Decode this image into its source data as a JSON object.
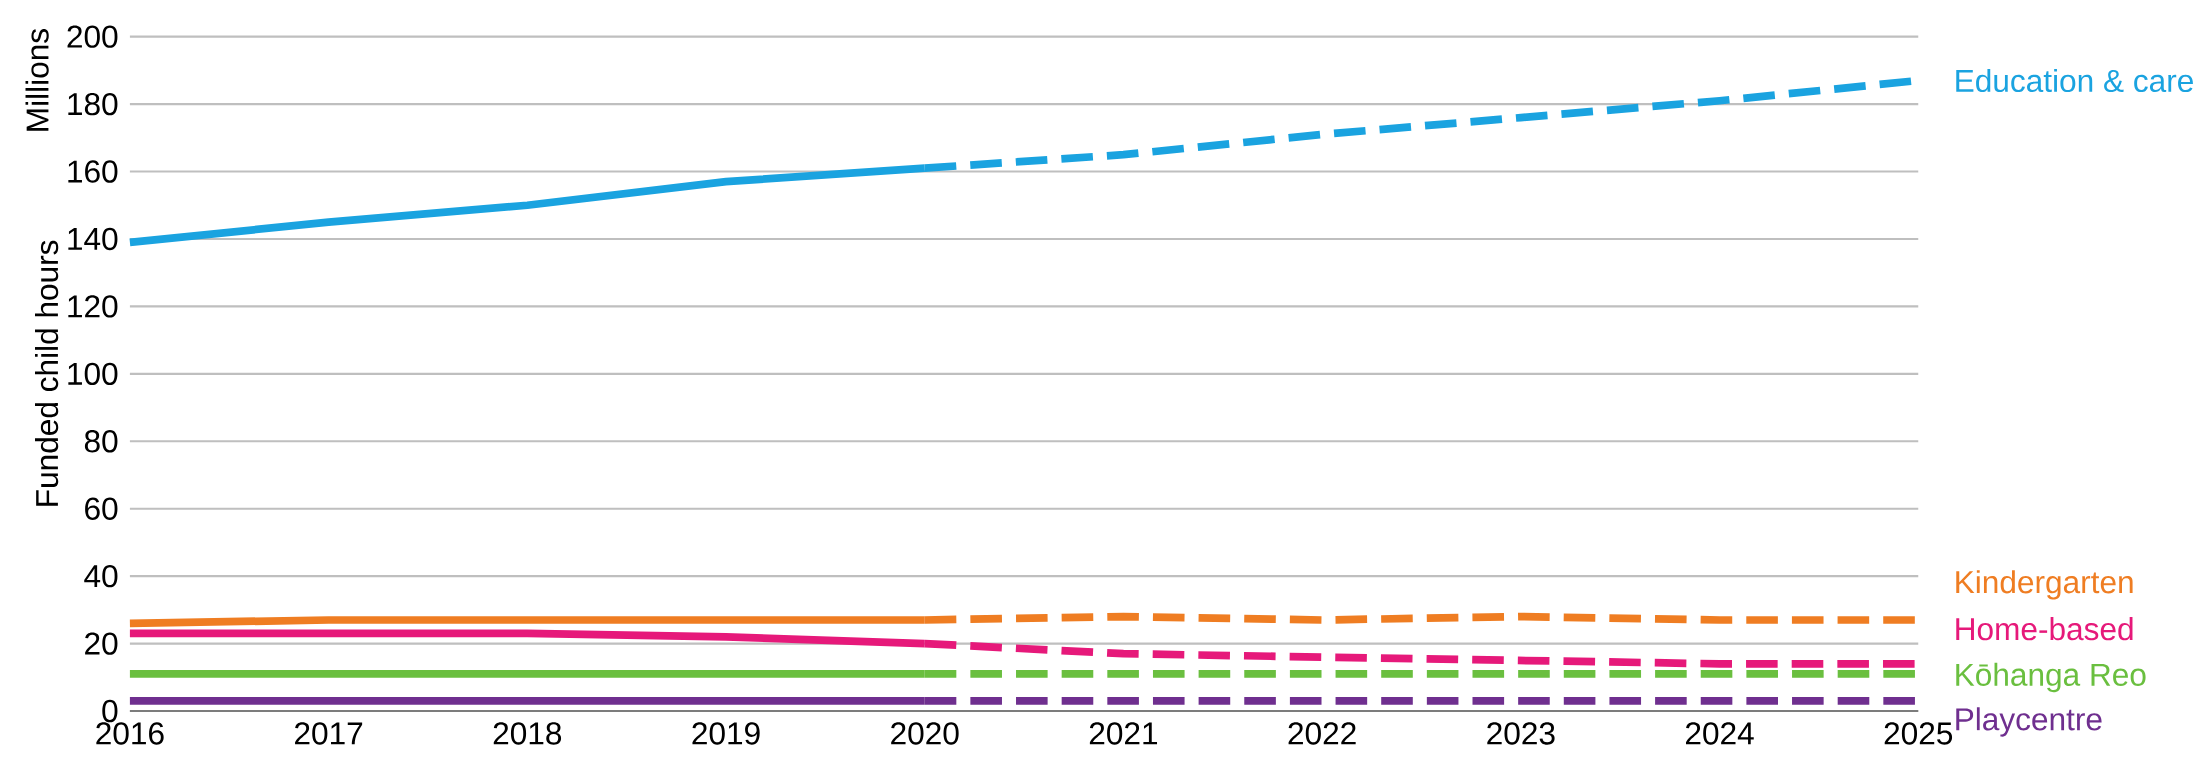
{
  "chart_data": {
    "type": "line",
    "ylabel": "Funded child hours",
    "annotations": [
      "Millions"
    ],
    "xlim": [
      2016,
      2025
    ],
    "xticks": [
      2016,
      2017,
      2018,
      2019,
      2020,
      2021,
      2022,
      2023,
      2024,
      2025
    ],
    "ylim": [
      0,
      200
    ],
    "yticks": [
      0,
      20,
      40,
      60,
      80,
      100,
      120,
      140,
      160,
      180,
      200
    ],
    "grid": "y",
    "marker": "none",
    "series": [
      {
        "color": "#1aa3e0",
        "line_style": "solid",
        "x": [
          2016,
          2017,
          2018,
          2019,
          2020
        ],
        "values": [
          139,
          145,
          150,
          157,
          161
        ]
      },
      {
        "name": "Education & care",
        "color": "#1aa3e0",
        "line_style": "dashed",
        "x": [
          2020,
          2021,
          2022,
          2023,
          2024,
          2025
        ],
        "values": [
          161,
          165,
          171,
          176,
          181,
          187
        ]
      },
      {
        "color": "#ef7d22",
        "line_style": "solid",
        "x": [
          2016,
          2017,
          2018,
          2019,
          2020
        ],
        "values": [
          26,
          27,
          27,
          27,
          27
        ]
      },
      {
        "name": "Kindergarten",
        "color": "#ef7d22",
        "line_style": "dashed",
        "x": [
          2020,
          2021,
          2022,
          2023,
          2024,
          2025
        ],
        "values": [
          27,
          28,
          27,
          28,
          27,
          27
        ]
      },
      {
        "color": "#e6197a",
        "line_style": "solid",
        "x": [
          2016,
          2017,
          2018,
          2019,
          2020
        ],
        "values": [
          23,
          23,
          23,
          22,
          20
        ]
      },
      {
        "name": "Home-based",
        "color": "#e6197a",
        "line_style": "dashed",
        "x": [
          2020,
          2021,
          2022,
          2023,
          2024,
          2025
        ],
        "values": [
          20,
          17,
          16,
          15,
          14,
          14
        ]
      },
      {
        "color": "#6abf3f",
        "line_style": "solid",
        "x": [
          2016,
          2017,
          2018,
          2019,
          2020
        ],
        "values": [
          11,
          11,
          11,
          11,
          11
        ]
      },
      {
        "name": "Kōhanga Reo",
        "color": "#6abf3f",
        "line_style": "dashed",
        "x": [
          2020,
          2021,
          2022,
          2023,
          2024,
          2025
        ],
        "values": [
          11,
          11,
          11,
          11,
          11,
          11
        ]
      },
      {
        "color": "#6f2f8f",
        "line_style": "solid",
        "x": [
          2016,
          2017,
          2018,
          2019,
          2020
        ],
        "values": [
          3,
          3,
          3,
          3,
          3
        ]
      },
      {
        "name": "Playcentre",
        "color": "#6f2f8f",
        "line_style": "dashed",
        "x": [
          2020,
          2021,
          2022,
          2023,
          2024,
          2025
        ],
        "values": [
          3,
          3,
          3,
          3,
          3,
          3
        ]
      }
    ]
  }
}
